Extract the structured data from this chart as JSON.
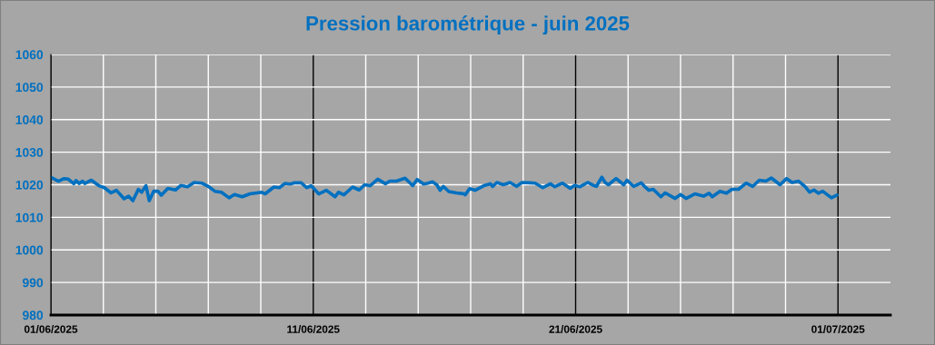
{
  "chart_data": {
    "type": "line",
    "title": "Pression barométrique - juin 2025",
    "xlim": [
      "2025-06-01",
      "2025-07-03"
    ],
    "xticks": [
      {
        "value": "2025-06-01",
        "label": "01/06/2025"
      },
      {
        "value": "2025-06-03",
        "label": null
      },
      {
        "value": "2025-06-05",
        "label": null
      },
      {
        "value": "2025-06-07",
        "label": null
      },
      {
        "value": "2025-06-09",
        "label": null
      },
      {
        "value": "2025-06-11",
        "label": "11/06/2025"
      },
      {
        "value": "2025-06-13",
        "label": null
      },
      {
        "value": "2025-06-15",
        "label": null
      },
      {
        "value": "2025-06-17",
        "label": null
      },
      {
        "value": "2025-06-19",
        "label": null
      },
      {
        "value": "2025-06-21",
        "label": "21/06/2025"
      },
      {
        "value": "2025-06-23",
        "label": null
      },
      {
        "value": "2025-06-25",
        "label": null
      },
      {
        "value": "2025-06-27",
        "label": null
      },
      {
        "value": "2025-06-29",
        "label": null
      },
      {
        "value": "2025-07-01",
        "label": "01/07/2025"
      }
    ],
    "ylim": [
      980,
      1060
    ],
    "yticks": [
      980,
      990,
      1000,
      1010,
      1020,
      1030,
      1040,
      1050,
      1060
    ],
    "grid": true,
    "legend": false,
    "marker": "none",
    "line_style": "solid",
    "series": [
      {
        "color": "#0070c0",
        "x": [
          "2025-06-01T00:00",
          "2025-06-01T07:00",
          "2025-06-01T12:00",
          "2025-06-01T16:00",
          "2025-06-01T21:00",
          "2025-06-01T23:00",
          "2025-06-02T02:00",
          "2025-06-02T05:00",
          "2025-06-02T07:00",
          "2025-06-02T13:00",
          "2025-06-02T20:00",
          "2025-06-03T01:00",
          "2025-06-03T07:00",
          "2025-06-03T12:00",
          "2025-06-03T19:00",
          "2025-06-03T23:00",
          "2025-06-04T03:00",
          "2025-06-04T08:00",
          "2025-06-04T11:00",
          "2025-06-04T15:00",
          "2025-06-04T18:00",
          "2025-06-04T22:00",
          "2025-06-05T02:00",
          "2025-06-05T05:00",
          "2025-06-05T11:00",
          "2025-06-05T18:00",
          "2025-06-05T23:00",
          "2025-06-06T05:00",
          "2025-06-06T11:00",
          "2025-06-06T18:00",
          "2025-06-07T00:00",
          "2025-06-07T06:00",
          "2025-06-07T12:00",
          "2025-06-07T19:00",
          "2025-06-08T00:00",
          "2025-06-08T07:00",
          "2025-06-08T14:00",
          "2025-06-09T01:00",
          "2025-06-09T04:00",
          "2025-06-09T12:00",
          "2025-06-09T17:00",
          "2025-06-09T22:00",
          "2025-06-10T03:00",
          "2025-06-10T07:00",
          "2025-06-10T13:00",
          "2025-06-10T18:00",
          "2025-06-10T22:00",
          "2025-06-11T05:00",
          "2025-06-11T12:00",
          "2025-06-11T20:00",
          "2025-06-11T23:00",
          "2025-06-12T04:00",
          "2025-06-12T12:00",
          "2025-06-12T18:00",
          "2025-06-12T23:00",
          "2025-06-13T04:00",
          "2025-06-13T11:00",
          "2025-06-13T18:00",
          "2025-06-13T22:00",
          "2025-06-14T04:00",
          "2025-06-14T12:00",
          "2025-06-14T19:00",
          "2025-06-14T23:00",
          "2025-06-15T05:00",
          "2025-06-15T09:00",
          "2025-06-15T13:00",
          "2025-06-15T17:00",
          "2025-06-15T20:00",
          "2025-06-15T23:00",
          "2025-06-16T04:00",
          "2025-06-16T11:00",
          "2025-06-16T18:00",
          "2025-06-16T19:00",
          "2025-06-16T23:00",
          "2025-06-17T04:00",
          "2025-06-17T12:00",
          "2025-06-17T18:00",
          "2025-06-17T20:00",
          "2025-06-18T00:00",
          "2025-06-18T06:00",
          "2025-06-18T12:00",
          "2025-06-18T18:00",
          "2025-06-18T23:00",
          "2025-06-19T06:00",
          "2025-06-19T11:00",
          "2025-06-19T18:00",
          "2025-06-20T01:00",
          "2025-06-20T05:00",
          "2025-06-20T12:00",
          "2025-06-20T19:00",
          "2025-06-20T23:00",
          "2025-06-21T04:00",
          "2025-06-21T11:00",
          "2025-06-21T17:00",
          "2025-06-21T19:00",
          "2025-06-22T00:00",
          "2025-06-22T03:00",
          "2025-06-22T06:00",
          "2025-06-22T13:00",
          "2025-06-22T20:00",
          "2025-06-22T23:00",
          "2025-06-23T05:00",
          "2025-06-23T12:00",
          "2025-06-23T15:00",
          "2025-06-23T19:00",
          "2025-06-23T23:00",
          "2025-06-24T06:00",
          "2025-06-24T10:00",
          "2025-06-24T19:00",
          "2025-06-25T00:00",
          "2025-06-25T05:00",
          "2025-06-25T13:00",
          "2025-06-25T21:00",
          "2025-06-26T02:00",
          "2025-06-26T05:00",
          "2025-06-26T12:00",
          "2025-06-26T18:00",
          "2025-06-26T23:00",
          "2025-06-27T05:00",
          "2025-06-27T12:00",
          "2025-06-27T18:00",
          "2025-06-28T00:00",
          "2025-06-28T06:00",
          "2025-06-28T11:00",
          "2025-06-28T19:00",
          "2025-06-29T01:00",
          "2025-06-29T06:00",
          "2025-06-29T12:00",
          "2025-06-29T18:00",
          "2025-06-29T22:00",
          "2025-06-30T02:00",
          "2025-06-30T06:00",
          "2025-06-30T10:00",
          "2025-06-30T18:00",
          "2025-06-30T23:00"
        ],
        "values": [
          1022.3,
          1021.1,
          1021.9,
          1021.7,
          1020.3,
          1021.3,
          1020.4,
          1021.1,
          1020.4,
          1021.4,
          1019.7,
          1019.1,
          1017.5,
          1018.3,
          1015.7,
          1016.5,
          1015.1,
          1018.6,
          1017.7,
          1019.7,
          1015.1,
          1018.0,
          1018.0,
          1016.8,
          1018.9,
          1018.4,
          1019.8,
          1019.4,
          1020.7,
          1020.5,
          1019.5,
          1018.0,
          1017.7,
          1016.0,
          1017.0,
          1016.3,
          1017.2,
          1017.7,
          1017.2,
          1019.3,
          1019.1,
          1020.4,
          1020.2,
          1020.6,
          1020.6,
          1019.1,
          1019.7,
          1017.2,
          1018.3,
          1016.3,
          1017.7,
          1016.9,
          1019.3,
          1018.4,
          1020.0,
          1019.7,
          1021.7,
          1020.3,
          1021.1,
          1021.1,
          1022.0,
          1019.7,
          1021.6,
          1020.2,
          1020.5,
          1020.9,
          1020.0,
          1018.3,
          1019.5,
          1017.9,
          1017.5,
          1017.2,
          1016.9,
          1018.8,
          1018.3,
          1019.7,
          1020.3,
          1019.5,
          1020.7,
          1020.0,
          1020.7,
          1019.5,
          1020.7,
          1020.6,
          1020.5,
          1019.1,
          1020.3,
          1019.4,
          1020.5,
          1018.9,
          1019.8,
          1019.4,
          1020.7,
          1019.7,
          1019.5,
          1022.3,
          1020.7,
          1020.0,
          1021.9,
          1020.0,
          1021.4,
          1019.5,
          1020.6,
          1019.5,
          1018.3,
          1018.6,
          1016.3,
          1017.5,
          1015.8,
          1017.0,
          1015.8,
          1017.2,
          1016.5,
          1017.4,
          1016.3,
          1018.0,
          1017.4,
          1018.6,
          1018.6,
          1020.5,
          1019.5,
          1021.4,
          1021.1,
          1022.1,
          1020.0,
          1021.9,
          1020.7,
          1021.1,
          1019.4,
          1017.7,
          1018.4,
          1017.4,
          1018.0,
          1016.0,
          1016.8
        ]
      }
    ]
  }
}
